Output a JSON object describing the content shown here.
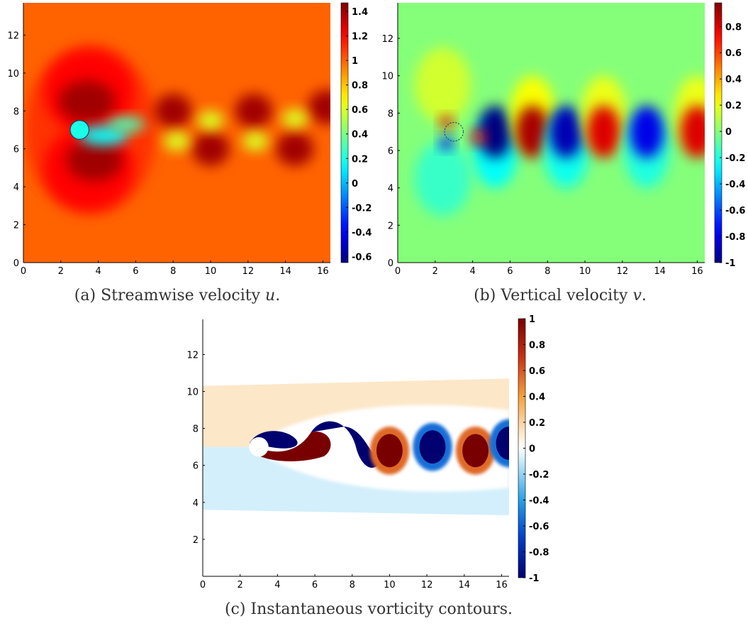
{
  "chart_data": [
    {
      "type": "heatmap",
      "id": "a",
      "caption_text": "(a) Streamwise velocity",
      "caption_var": "u",
      "caption_end": ".",
      "xticks": [
        "0",
        "2",
        "4",
        "6",
        "8",
        "10",
        "12",
        "14",
        "16"
      ],
      "yticks": [
        "0",
        "2",
        "4",
        "6",
        "8",
        "10",
        "12"
      ],
      "xlim": [
        0,
        16.4
      ],
      "ylim": [
        0,
        13.7
      ],
      "colorbar": {
        "min": -0.65,
        "max": 1.47,
        "ticks": [
          "-0.6",
          "-0.4",
          "-0.2",
          "0",
          "0.2",
          "0.4",
          "0.6",
          "0.8",
          "1",
          "1.2",
          "1.4"
        ]
      },
      "colormap": "jet",
      "cylinder": {
        "x": 3.0,
        "y": 7.0,
        "r": 0.5
      }
    },
    {
      "type": "heatmap",
      "id": "b",
      "caption_text": "(b) Vertical velocity",
      "caption_var": "v",
      "caption_end": ".",
      "xticks": [
        "0",
        "2",
        "4",
        "6",
        "8",
        "10",
        "12",
        "14",
        "16"
      ],
      "yticks": [
        "0",
        "2",
        "4",
        "6",
        "8",
        "10",
        "12"
      ],
      "xlim": [
        0,
        16.4
      ],
      "ylim": [
        0,
        13.9
      ],
      "colorbar": {
        "min": -1.0,
        "max": 0.98,
        "ticks": [
          "-1",
          "-0.8",
          "-0.6",
          "-0.4",
          "-0.2",
          "0",
          "0.2",
          "0.4",
          "0.6",
          "0.8"
        ]
      },
      "colormap": "jet",
      "cylinder": {
        "x": 3.0,
        "y": 7.0,
        "r": 0.5
      }
    },
    {
      "type": "heatmap",
      "id": "c",
      "caption_text": "(c) Instantaneous vorticity contours.",
      "caption_var": "",
      "caption_end": "",
      "xticks": [
        "0",
        "2",
        "4",
        "6",
        "8",
        "10",
        "12",
        "14",
        "16"
      ],
      "yticks": [
        "2",
        "4",
        "6",
        "8",
        "10",
        "12"
      ],
      "xlim": [
        0,
        16.4
      ],
      "ylim": [
        0,
        13.9
      ],
      "colorbar": {
        "min": -1,
        "max": 1,
        "ticks": [
          "-1",
          "-0.8",
          "-0.6",
          "-0.4",
          "-0.2",
          "0",
          "0.2",
          "0.4",
          "0.6",
          "0.8",
          "1"
        ]
      },
      "colormap": "blue-white-red",
      "cylinder": {
        "x": 3.0,
        "y": 7.0,
        "r": 0.5
      }
    }
  ]
}
